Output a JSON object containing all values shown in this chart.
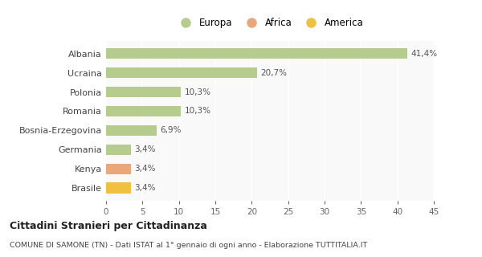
{
  "categories": [
    "Albania",
    "Ucraina",
    "Polonia",
    "Romania",
    "Bosnia-Erzegovina",
    "Germania",
    "Kenya",
    "Brasile"
  ],
  "values": [
    41.4,
    20.7,
    10.3,
    10.3,
    6.9,
    3.4,
    3.4,
    3.4
  ],
  "labels": [
    "41,4%",
    "20,7%",
    "10,3%",
    "10,3%",
    "6,9%",
    "3,4%",
    "3,4%",
    "3,4%"
  ],
  "colors": [
    "#b5cc8e",
    "#b5cc8e",
    "#b5cc8e",
    "#b5cc8e",
    "#b5cc8e",
    "#b5cc8e",
    "#e8a87c",
    "#f0c040"
  ],
  "legend": [
    {
      "label": "Europa",
      "color": "#b5cc8e"
    },
    {
      "label": "Africa",
      "color": "#e8a87c"
    },
    {
      "label": "America",
      "color": "#f0c040"
    }
  ],
  "xlim": [
    0,
    45
  ],
  "xticks": [
    0,
    5,
    10,
    15,
    20,
    25,
    30,
    35,
    40,
    45
  ],
  "title": "Cittadini Stranieri per Cittadinanza",
  "subtitle": "COMUNE DI SAMONE (TN) - Dati ISTAT al 1° gennaio di ogni anno - Elaborazione TUTTITALIA.IT",
  "bg_color": "#ffffff",
  "plot_bg_color": "#f9f9f9",
  "grid_color": "#ffffff",
  "bar_height": 0.55
}
